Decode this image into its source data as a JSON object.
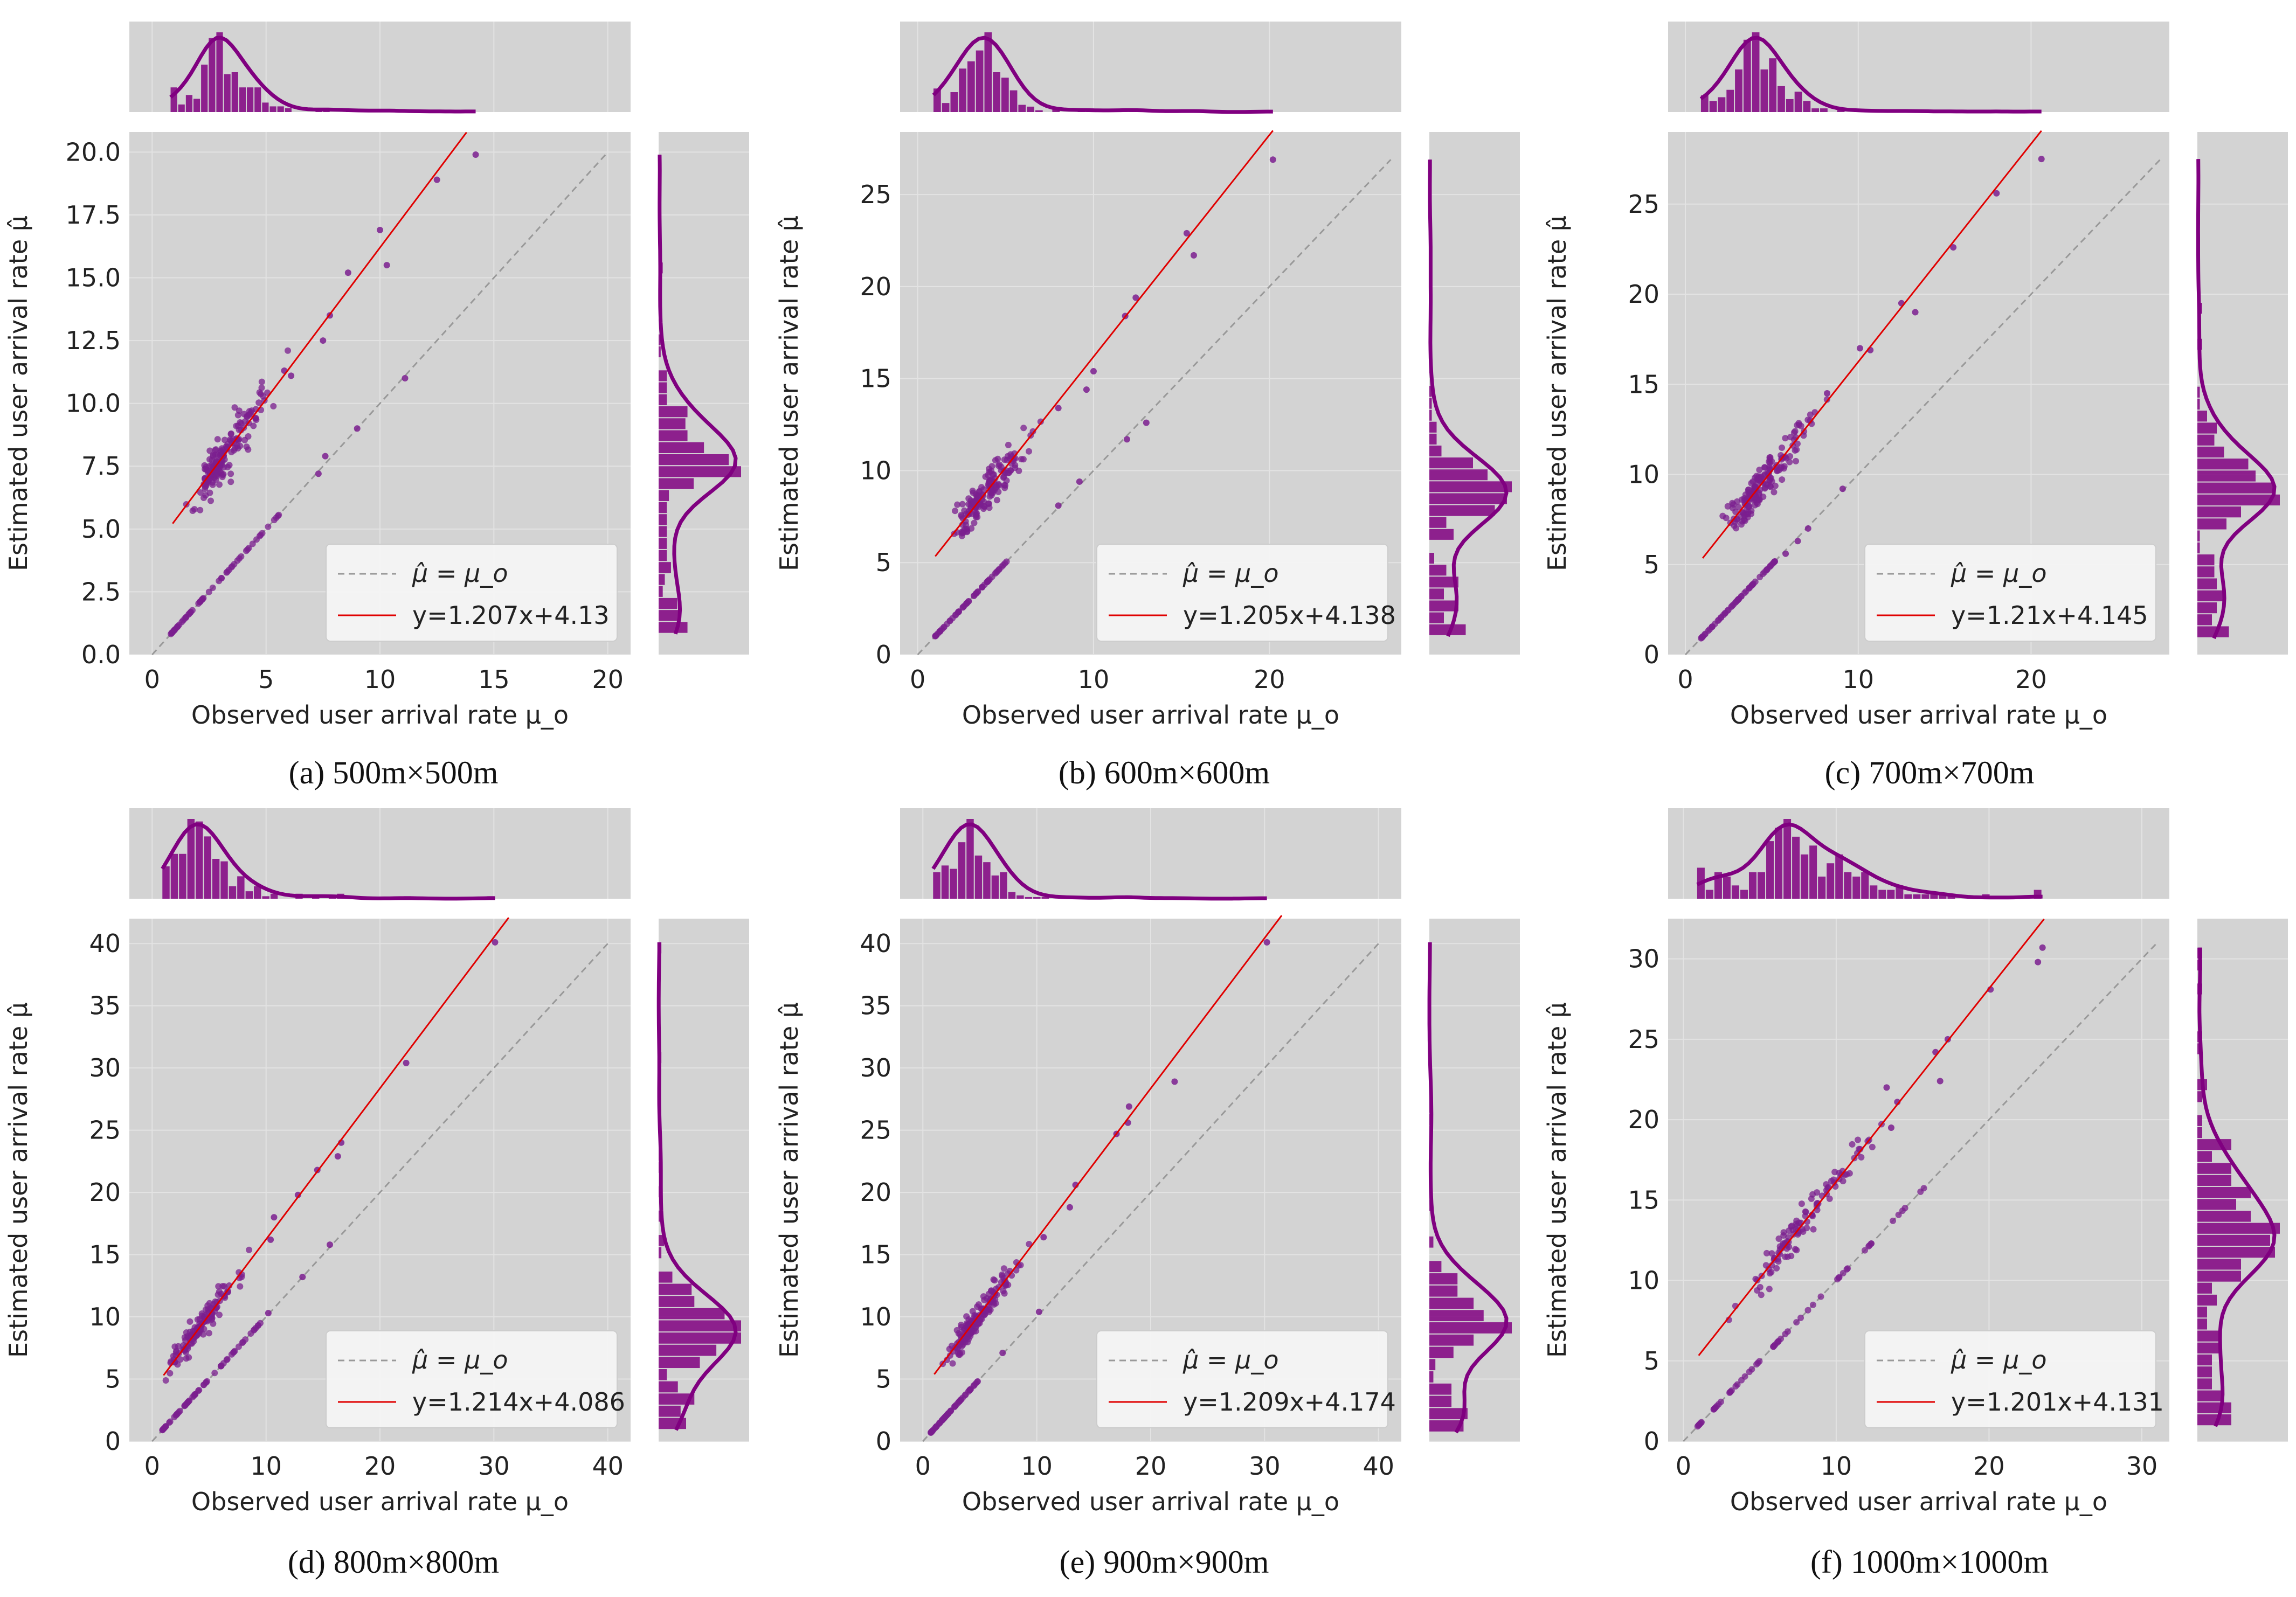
{
  "figure": {
    "type": "joint-scatter-grid",
    "panel_count": 6
  },
  "colors": {
    "panel_bg": "#d3d3d3",
    "grid": "#e3e3e3",
    "points": "#7b1f8f",
    "hist": "#800080",
    "fit": "#e00000",
    "identity": "#999999",
    "legend_bg": "#f5f5f5"
  },
  "chart_data": [
    {
      "type": "scatter",
      "caption": "(a) 500m×500m",
      "xlabel": "Observed user arrival rate μ_o",
      "ylabel": "Estimated user arrival rate μ̂",
      "xlim": [
        -1,
        21
      ],
      "ylim": [
        0,
        20.8
      ],
      "xticks": [
        0,
        5,
        10,
        15,
        20
      ],
      "xtick_labels": [
        "0",
        "5",
        "10",
        "15",
        "20"
      ],
      "yticks": [
        0,
        2.5,
        5,
        7.5,
        10,
        12.5,
        15,
        17.5,
        20
      ],
      "ytick_labels": [
        "0.0",
        "2.5",
        "5.0",
        "7.5",
        "10.0",
        "12.5",
        "15.0",
        "17.5",
        "20.0"
      ],
      "fit": {
        "slope": 1.207,
        "intercept": 4.13,
        "x_range": [
          0.9,
          13.8
        ]
      },
      "identity": {
        "x_range": [
          0,
          19.9
        ]
      },
      "legend": {
        "identity_label": "μ̂ = μ_o",
        "fit_label": "y=1.207x+4.13"
      },
      "cluster": {
        "x_center": 3.1,
        "x_spread": 1.3,
        "count": 170
      },
      "outliers": [
        [
          14.2,
          19.9
        ],
        [
          12.5,
          18.9
        ],
        [
          10.0,
          16.9
        ],
        [
          10.3,
          15.5
        ],
        [
          7.8,
          13.5
        ],
        [
          8.6,
          15.2
        ],
        [
          7.5,
          12.5
        ],
        [
          6.1,
          11.1
        ],
        [
          5.8,
          11.3
        ],
        [
          11.1,
          11.0
        ],
        [
          9.0,
          9.0
        ],
        [
          7.6,
          7.9
        ],
        [
          7.3,
          7.2
        ]
      ],
      "identity_points": {
        "x_range": [
          0.8,
          5.6
        ]
      }
    },
    {
      "type": "scatter",
      "caption": "(b) 600m×600m",
      "xlabel": "Observed user arrival rate μ_o",
      "ylabel": "Estimated user arrival rate μ̂",
      "xlim": [
        -1,
        27.5
      ],
      "ylim": [
        0,
        28.4
      ],
      "xticks": [
        0,
        10,
        20
      ],
      "xtick_labels": [
        "0",
        "10",
        "20"
      ],
      "yticks": [
        0,
        5,
        10,
        15,
        20,
        25
      ],
      "ytick_labels": [
        "0",
        "5",
        "10",
        "15",
        "20",
        "25"
      ],
      "fit": {
        "slope": 1.205,
        "intercept": 4.138,
        "x_range": [
          1.0,
          20.2
        ]
      },
      "identity": {
        "x_range": [
          0,
          26.9
        ]
      },
      "legend": {
        "identity_label": "μ̂ = μ_o",
        "fit_label": "y=1.205x+4.138"
      },
      "cluster": {
        "x_center": 3.6,
        "x_spread": 1.6,
        "count": 160
      },
      "outliers": [
        [
          20.2,
          26.9
        ],
        [
          15.3,
          22.9
        ],
        [
          15.7,
          21.7
        ],
        [
          12.4,
          19.4
        ],
        [
          11.8,
          18.4
        ],
        [
          10.0,
          15.4
        ],
        [
          9.6,
          14.4
        ],
        [
          8.0,
          13.4
        ],
        [
          13.0,
          12.6
        ],
        [
          11.9,
          11.7
        ],
        [
          9.2,
          9.4
        ],
        [
          8.0,
          8.1
        ]
      ],
      "identity_points": {
        "x_range": [
          1.0,
          5.2
        ]
      }
    },
    {
      "type": "scatter",
      "caption": "(c) 700m×700m",
      "xlabel": "Observed user arrival rate μ_o",
      "ylabel": "Estimated user arrival rate μ̂",
      "xlim": [
        -1,
        28
      ],
      "ylim": [
        0,
        29
      ],
      "xticks": [
        0,
        10,
        20
      ],
      "xtick_labels": [
        "0",
        "10",
        "20"
      ],
      "yticks": [
        0,
        5,
        10,
        15,
        20,
        25
      ],
      "ytick_labels": [
        "0",
        "5",
        "10",
        "15",
        "20",
        "25"
      ],
      "fit": {
        "slope": 1.21,
        "intercept": 4.145,
        "x_range": [
          1.0,
          20.6
        ]
      },
      "identity": {
        "x_range": [
          0,
          27.5
        ]
      },
      "legend": {
        "identity_label": "μ̂ = μ_o",
        "fit_label": "y=1.21x+4.145"
      },
      "cluster": {
        "x_center": 4.2,
        "x_spread": 2.0,
        "count": 170
      },
      "outliers": [
        [
          20.6,
          27.5
        ],
        [
          18.0,
          25.6
        ],
        [
          15.5,
          22.6
        ],
        [
          12.5,
          19.5
        ],
        [
          13.3,
          19.0
        ],
        [
          10.1,
          17.0
        ],
        [
          10.7,
          16.9
        ],
        [
          8.2,
          14.5
        ],
        [
          9.1,
          9.2
        ],
        [
          7.1,
          7.0
        ],
        [
          6.5,
          6.3
        ],
        [
          5.8,
          5.6
        ]
      ],
      "identity_points": {
        "x_range": [
          0.9,
          5.2
        ]
      }
    },
    {
      "type": "scatter",
      "caption": "(d) 800m×800m",
      "xlabel": "Observed user arrival rate μ_o",
      "ylabel": "Estimated user arrival rate μ̂",
      "xlim": [
        -2,
        42
      ],
      "ylim": [
        0,
        42
      ],
      "xticks": [
        0,
        10,
        20,
        30,
        40
      ],
      "xtick_labels": [
        "0",
        "10",
        "20",
        "30",
        "40"
      ],
      "yticks": [
        0,
        5,
        10,
        15,
        20,
        25,
        30,
        35,
        40
      ],
      "ytick_labels": [
        "0",
        "5",
        "10",
        "15",
        "20",
        "25",
        "30",
        "35",
        "40"
      ],
      "fit": {
        "slope": 1.214,
        "intercept": 4.086,
        "x_range": [
          1.0,
          31.3
        ]
      },
      "identity": {
        "x_range": [
          0,
          40
        ]
      },
      "legend": {
        "identity_label": "μ̂ = μ_o",
        "fit_label": "y=1.214x+4.086"
      },
      "cluster": {
        "x_center": 4.0,
        "x_spread": 2.5,
        "count": 130
      },
      "outliers": [
        [
          30.1,
          40.1
        ],
        [
          22.3,
          30.4
        ],
        [
          16.6,
          24.0
        ],
        [
          16.3,
          22.9
        ],
        [
          14.5,
          21.8
        ],
        [
          12.8,
          19.8
        ],
        [
          10.7,
          18.0
        ],
        [
          10.4,
          16.2
        ],
        [
          15.6,
          15.8
        ],
        [
          13.2,
          13.2
        ],
        [
          10.2,
          10.3
        ]
      ],
      "identity_points": {
        "x_range": [
          0.9,
          9.5
        ]
      }
    },
    {
      "type": "scatter",
      "caption": "(e) 900m×900m",
      "xlabel": "Observed user arrival rate μ_o",
      "ylabel": "Estimated user arrival rate μ̂",
      "xlim": [
        -2,
        42
      ],
      "ylim": [
        0,
        42
      ],
      "xticks": [
        0,
        10,
        20,
        30,
        40
      ],
      "xtick_labels": [
        "0",
        "10",
        "20",
        "30",
        "40"
      ],
      "yticks": [
        0,
        5,
        10,
        15,
        20,
        25,
        30,
        35,
        40
      ],
      "ytick_labels": [
        "0",
        "5",
        "10",
        "15",
        "20",
        "25",
        "30",
        "35",
        "40"
      ],
      "fit": {
        "slope": 1.209,
        "intercept": 4.174,
        "x_range": [
          1.0,
          31.5
        ]
      },
      "identity": {
        "x_range": [
          0,
          40
        ]
      },
      "legend": {
        "identity_label": "μ̂ = μ_o",
        "fit_label": "y=1.209x+4.174"
      },
      "cluster": {
        "x_center": 4.6,
        "x_spread": 2.6,
        "count": 160
      },
      "outliers": [
        [
          30.2,
          40.1
        ],
        [
          22.1,
          28.9
        ],
        [
          18.1,
          26.9
        ],
        [
          18.0,
          25.6
        ],
        [
          17.0,
          24.7
        ],
        [
          13.4,
          20.6
        ],
        [
          12.9,
          18.8
        ],
        [
          10.6,
          16.4
        ],
        [
          10.2,
          10.4
        ],
        [
          7.0,
          7.1
        ]
      ],
      "identity_points": {
        "x_range": [
          0.7,
          5.0
        ]
      }
    },
    {
      "type": "scatter",
      "caption": "(f) 1000m×1000m",
      "xlabel": "Observed user arrival rate μ_o",
      "ylabel": "Estimated user arrival rate μ̂",
      "xlim": [
        -1,
        31.8
      ],
      "ylim": [
        0,
        32.5
      ],
      "xticks": [
        0,
        10,
        20,
        30
      ],
      "xtick_labels": [
        "0",
        "10",
        "20",
        "30"
      ],
      "yticks": [
        0,
        5,
        10,
        15,
        20,
        25,
        30
      ],
      "ytick_labels": [
        "0",
        "5",
        "10",
        "15",
        "20",
        "25",
        "30"
      ],
      "fit": {
        "slope": 1.201,
        "intercept": 4.131,
        "x_range": [
          1.0,
          23.6
        ]
      },
      "identity": {
        "x_range": [
          0,
          30.9
        ]
      },
      "legend": {
        "identity_label": "μ̂ = μ_o",
        "fit_label": "y=1.201x+4.131"
      },
      "cluster": {
        "x_center": 7.5,
        "x_spread": 4.0,
        "count": 110
      },
      "outliers": [
        [
          23.5,
          30.7
        ],
        [
          23.2,
          29.8
        ],
        [
          20.1,
          28.1
        ],
        [
          17.3,
          25.0
        ],
        [
          16.5,
          24.2
        ],
        [
          16.8,
          22.4
        ],
        [
          13.3,
          22.0
        ],
        [
          14.0,
          21.1
        ],
        [
          13.6,
          19.5
        ]
      ],
      "identity_points": {
        "x_range": [
          0.9,
          16.0
        ]
      }
    }
  ]
}
